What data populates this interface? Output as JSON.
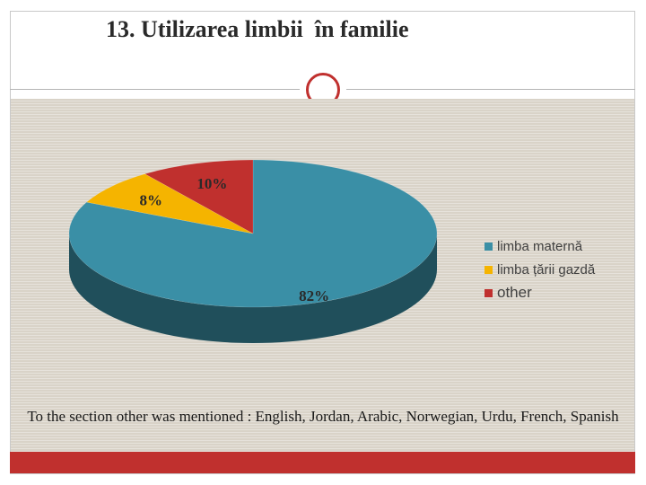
{
  "slide": {
    "title": "13. Utilizarea limbii  în familie",
    "note": "To the section other was mentioned : English, Jordan, Arabic, Norwegian, Urdu, French, Spanish"
  },
  "chart_data": {
    "type": "pie",
    "title": "",
    "style": "3d",
    "legend_position": "right",
    "categories": [
      "limba maternă",
      "limba țării gazdă",
      "other"
    ],
    "values": [
      82,
      8,
      10
    ],
    "data_labels": [
      "82%",
      "8%",
      "10%"
    ],
    "colors": [
      "#3a8fa6",
      "#f5b400",
      "#c0302e"
    ]
  },
  "colors": {
    "accent": "#c0302e",
    "background": "#d9d3c8"
  }
}
